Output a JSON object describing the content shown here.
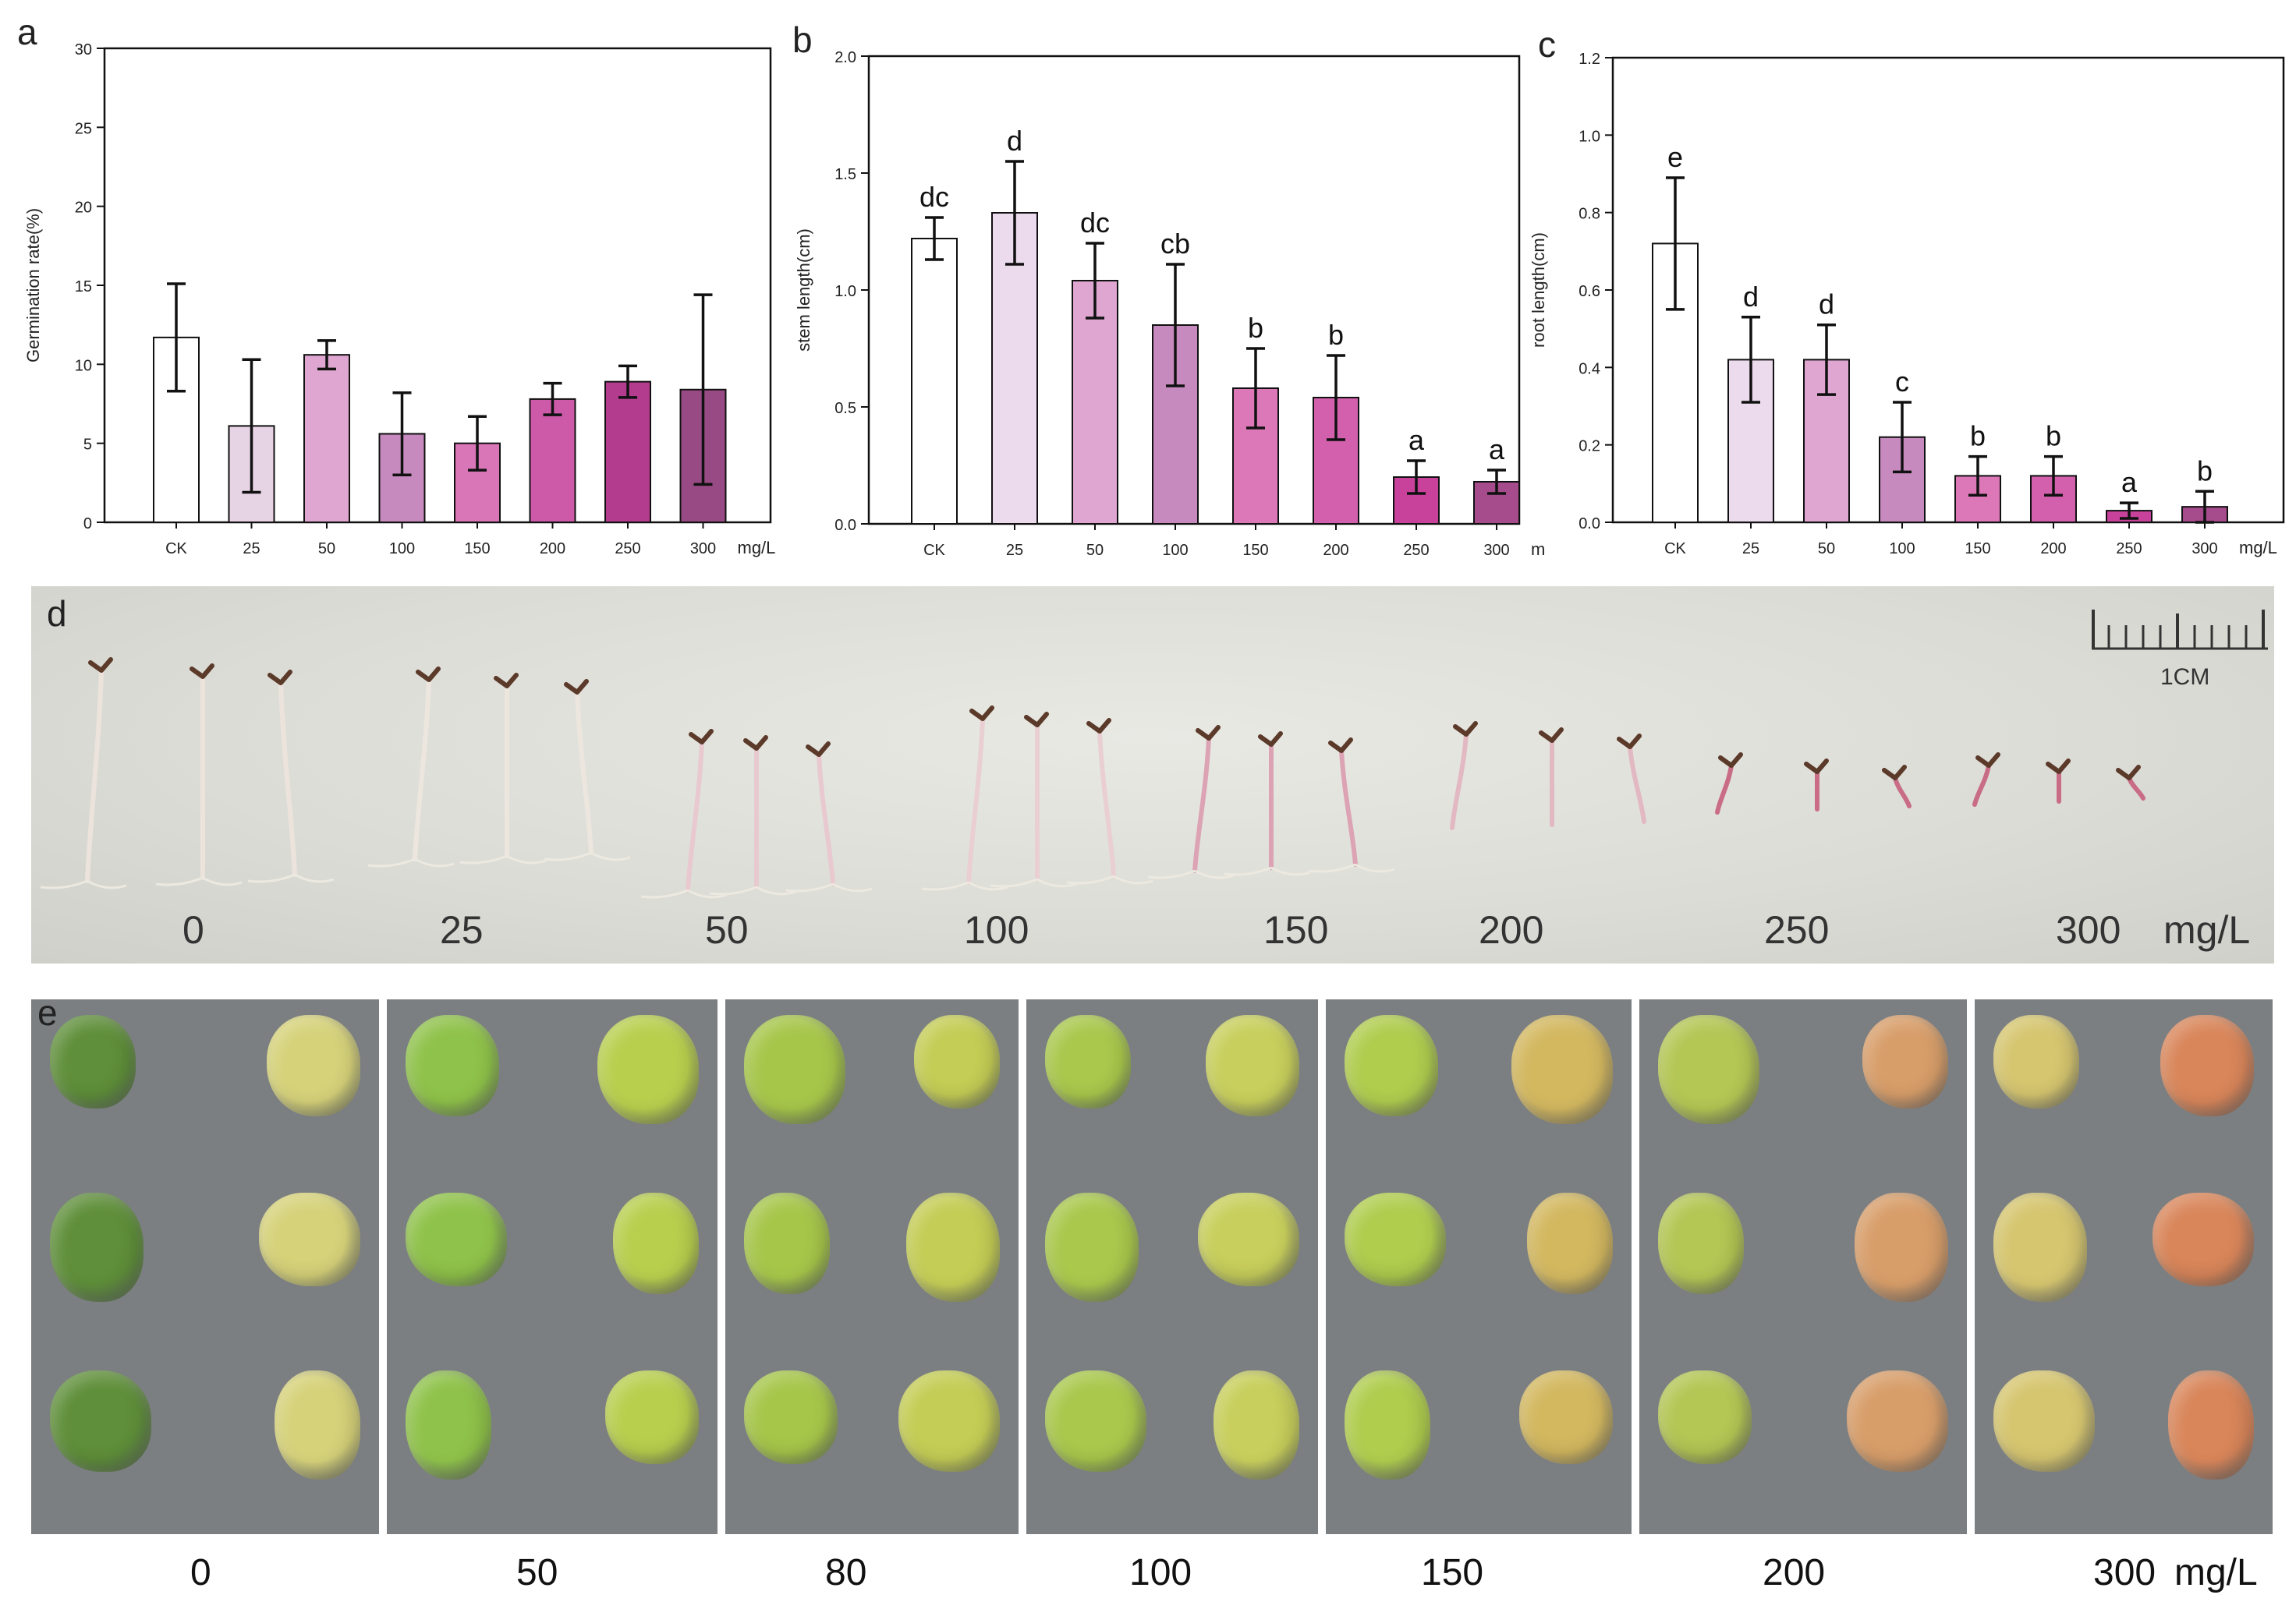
{
  "panels": {
    "a": "a",
    "b": "b",
    "c": "c",
    "d": "d",
    "e": "e"
  },
  "chart_data": [
    {
      "id": "a",
      "type": "bar",
      "ylabel": "Germination rate(%)",
      "xunit": "mg/L",
      "categories": [
        "CK",
        "25",
        "50",
        "100",
        "150",
        "200",
        "250",
        "300"
      ],
      "values": [
        11.7,
        6.1,
        10.6,
        5.6,
        5.0,
        7.8,
        8.9,
        8.4
      ],
      "errors": [
        3.4,
        4.2,
        0.9,
        2.6,
        1.7,
        1.0,
        1.0,
        6.0
      ],
      "letters": [],
      "ylim": [
        0,
        30
      ],
      "yticks": [
        "0",
        "5",
        "10",
        "15",
        "20",
        "25",
        "30"
      ],
      "ytick_values": [
        0,
        5,
        10,
        15,
        20,
        25,
        30
      ],
      "colors": [
        "#ffffff",
        "#e6d3e4",
        "#dea6d0",
        "#c78abe",
        "#d876b7",
        "#cc5aa9",
        "#b43c8e",
        "#984a84"
      ]
    },
    {
      "id": "b",
      "type": "bar",
      "ylabel": "stem length(cm)",
      "xunit": "mg/L",
      "categories": [
        "CK",
        "25",
        "50",
        "100",
        "150",
        "200",
        "250",
        "300"
      ],
      "values": [
        1.22,
        1.33,
        1.04,
        0.85,
        0.58,
        0.54,
        0.2,
        0.18
      ],
      "errors": [
        0.09,
        0.22,
        0.16,
        0.26,
        0.17,
        0.18,
        0.07,
        0.05
      ],
      "letters": [
        "dc",
        "d",
        "dc",
        "cb",
        "b",
        "b",
        "a",
        "a"
      ],
      "ylim": [
        0,
        2.0
      ],
      "yticks": [
        "0.0",
        "0.5",
        "1.0",
        "1.5",
        "2.0"
      ],
      "ytick_values": [
        0,
        0.5,
        1.0,
        1.5,
        2.0
      ],
      "colors": [
        "#ffffff",
        "#ecdbec",
        "#dea6d0",
        "#c78abe",
        "#dd78b8",
        "#d260ad",
        "#c8429b",
        "#a64b8b"
      ]
    },
    {
      "id": "c",
      "type": "bar",
      "ylabel": "root length(cm)",
      "xunit": "mg/L",
      "categories": [
        "CK",
        "25",
        "50",
        "100",
        "150",
        "200",
        "250",
        "300"
      ],
      "values": [
        0.72,
        0.42,
        0.42,
        0.22,
        0.12,
        0.12,
        0.03,
        0.04
      ],
      "errors": [
        0.17,
        0.11,
        0.09,
        0.09,
        0.05,
        0.05,
        0.02,
        0.04
      ],
      "letters": [
        "e",
        "d",
        "d",
        "c",
        "b",
        "b",
        "a",
        "b"
      ],
      "ylim": [
        0,
        1.2
      ],
      "yticks": [
        "0.0",
        "0.2",
        "0.4",
        "0.6",
        "0.8",
        "1.0",
        "1.2"
      ],
      "ytick_values": [
        0,
        0.2,
        0.4,
        0.6,
        0.8,
        1.0,
        1.2
      ],
      "colors": [
        "#ffffff",
        "#ecdbec",
        "#dea6d0",
        "#c78abe",
        "#dd78b8",
        "#d260ad",
        "#c8429b",
        "#a64b8b"
      ]
    }
  ],
  "panel_d": {
    "labels": [
      "0",
      "25",
      "50",
      "100",
      "150",
      "200",
      "250",
      "300"
    ],
    "unit": "mg/L",
    "scale": "1CM"
  },
  "panel_e": {
    "labels": [
      "0",
      "50",
      "80",
      "100",
      "150",
      "200",
      "300"
    ],
    "unit": "mg/L"
  }
}
